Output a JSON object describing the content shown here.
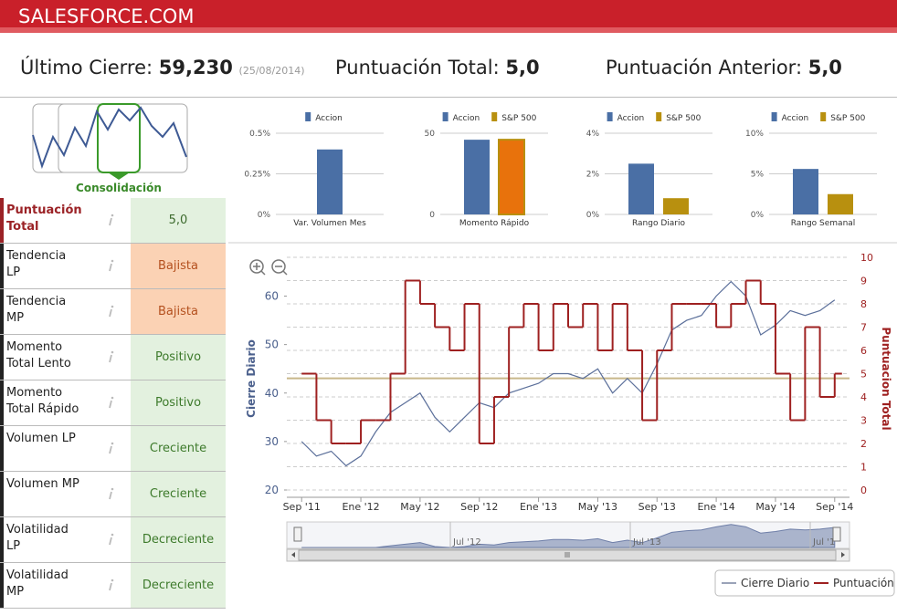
{
  "header": {
    "title": "SALESFORCE.COM"
  },
  "summary": {
    "last_close_label": "Último Cierre:",
    "last_close": "59,230",
    "date": "(25/08/2014)",
    "total_label": "Puntuación Total:",
    "total": "5,0",
    "prev_label": "Puntuación Anterior:",
    "prev": "5,0"
  },
  "consolidation": {
    "label": "Consolidación"
  },
  "rows": [
    {
      "label": "Puntuación Total",
      "value": "5,0",
      "color": "#e3f1df",
      "text_color": "#3d6b2e"
    },
    {
      "label": "Tendencia LP",
      "value": "Bajista",
      "color": "#fbd2b4",
      "text_color": "#b4501e"
    },
    {
      "label": "Tendencia MP",
      "value": "Bajista",
      "color": "#fbd2b4",
      "text_color": "#b4501e"
    },
    {
      "label": "Momento Total Lento",
      "value": "Positivo",
      "color": "#e3f1df",
      "text_color": "#3d7a2b"
    },
    {
      "label": "Momento Total Rápido",
      "value": "Positivo",
      "color": "#e3f1df",
      "text_color": "#3d7a2b"
    },
    {
      "label": "Volumen LP",
      "value": "Creciente",
      "color": "#e3f1df",
      "text_color": "#3d7a2b"
    },
    {
      "label": "Volumen MP",
      "value": "Creciente",
      "color": "#e3f1df",
      "text_color": "#3d7a2b"
    },
    {
      "label": "Volatilidad LP",
      "value": "Decreciente",
      "color": "#e3f1df",
      "text_color": "#3d7a2b"
    },
    {
      "label": "Volatilidad MP",
      "value": "Decreciente",
      "color": "#e3f1df",
      "text_color": "#3d7a2b"
    }
  ],
  "chart_data": [
    {
      "type": "bar",
      "categories": [
        "Var. Volumen Mes"
      ],
      "series": [
        {
          "name": "Accion",
          "color": "#4a6fa5",
          "values": [
            0.4
          ]
        }
      ],
      "ylim": [
        0,
        0.5
      ],
      "yticks": [
        {
          "value": 0,
          "label": "0%"
        },
        {
          "value": 0.25,
          "label": "0.25%"
        },
        {
          "value": 0.5,
          "label": "0.5%"
        }
      ]
    },
    {
      "type": "bar",
      "categories": [
        "Momento Rápido"
      ],
      "series": [
        {
          "name": "Accion",
          "color": "#4a6fa5",
          "values": [
            46
          ]
        },
        {
          "name": "S&P 500",
          "color": "#b8900f",
          "bar_color": "#e8720c",
          "values": [
            46
          ]
        }
      ],
      "ylim": [
        0,
        50
      ],
      "yticks": [
        0,
        50
      ]
    },
    {
      "type": "bar",
      "categories": [
        "Rango Diario"
      ],
      "series": [
        {
          "name": "Accion",
          "color": "#4a6fa5",
          "values": [
            2.5
          ]
        },
        {
          "name": "S&P 500",
          "color": "#b8900f",
          "values": [
            0.8
          ]
        }
      ],
      "ylim": [
        0,
        4
      ],
      "yticks": [
        {
          "value": 0,
          "label": "0%"
        },
        {
          "value": 2,
          "label": "2%"
        },
        {
          "value": 4,
          "label": "4%"
        }
      ]
    },
    {
      "type": "bar",
      "categories": [
        "Rango Semanal"
      ],
      "series": [
        {
          "name": "Accion",
          "color": "#4a6fa5",
          "values": [
            5.6
          ]
        },
        {
          "name": "S&P 500",
          "color": "#b8900f",
          "values": [
            2.5
          ]
        }
      ],
      "ylim": [
        0,
        10
      ],
      "yticks": [
        {
          "value": 0,
          "label": "0%"
        },
        {
          "value": 5,
          "label": "5%"
        },
        {
          "value": 10,
          "label": "10%"
        }
      ]
    },
    {
      "type": "line",
      "x": [
        "2011-09",
        "2011-10",
        "2011-11",
        "2011-12",
        "2012-01",
        "2012-02",
        "2012-03",
        "2012-04",
        "2012-05",
        "2012-06",
        "2012-07",
        "2012-08",
        "2012-09",
        "2012-10",
        "2012-11",
        "2012-12",
        "2013-01",
        "2013-02",
        "2013-03",
        "2013-04",
        "2013-05",
        "2013-06",
        "2013-07",
        "2013-08",
        "2013-09",
        "2013-10",
        "2013-11",
        "2013-12",
        "2014-01",
        "2014-02",
        "2014-03",
        "2014-04",
        "2014-05",
        "2014-06",
        "2014-07",
        "2014-08",
        "2014-09"
      ],
      "series": [
        {
          "name": "Cierre Diario",
          "color": "#5b6f9a",
          "values": [
            30,
            27,
            28,
            25,
            27,
            32,
            36,
            38,
            40,
            35,
            32,
            35,
            38,
            37,
            40,
            41,
            42,
            44,
            44,
            43,
            45,
            40,
            43,
            40,
            46,
            53,
            55,
            56,
            60,
            63,
            60,
            52,
            54,
            57,
            56,
            57,
            59.2
          ]
        },
        {
          "name": "Puntuación",
          "color": "#9e2020",
          "axis": "y2",
          "values": [
            5,
            3,
            2,
            2,
            3,
            3,
            5,
            9,
            8,
            7,
            6,
            8,
            2,
            4,
            7,
            8,
            6,
            8,
            7,
            8,
            6,
            8,
            6,
            3,
            6,
            8,
            8,
            8,
            7,
            8,
            9,
            8,
            5,
            3,
            7,
            4,
            5
          ]
        }
      ],
      "xlim": [
        "2011-08",
        "2014-10"
      ],
      "xticks": [
        {
          "value": "2011-09",
          "label": "Sep '11"
        },
        {
          "value": "2012-01",
          "label": "Ene '12"
        },
        {
          "value": "2012-05",
          "label": "May '12"
        },
        {
          "value": "2012-09",
          "label": "Sep '12"
        },
        {
          "value": "2013-01",
          "label": "Ene '13"
        },
        {
          "value": "2013-05",
          "label": "May '13"
        },
        {
          "value": "2013-09",
          "label": "Sep '13"
        },
        {
          "value": "2014-01",
          "label": "Ene '14"
        },
        {
          "value": "2014-05",
          "label": "May '14"
        },
        {
          "value": "2014-09",
          "label": "Sep '14"
        }
      ],
      "ylim": [
        20,
        68
      ],
      "yticks": [
        20,
        30,
        40,
        50,
        60
      ],
      "y2lim": [
        0,
        10
      ],
      "y2ticks": [
        0,
        1,
        2,
        3,
        4,
        5,
        6,
        7,
        8,
        9,
        10
      ],
      "ylabel": "Cierre Diario",
      "y2label": "Puntuacion Total",
      "reference_line": {
        "value": 4.8,
        "axis": "y2",
        "color": "#c8b88a"
      },
      "grid": true,
      "navigator": {
        "labels": [
          "Jul '12",
          "Jul '13",
          "Jul '1"
        ]
      }
    }
  ]
}
